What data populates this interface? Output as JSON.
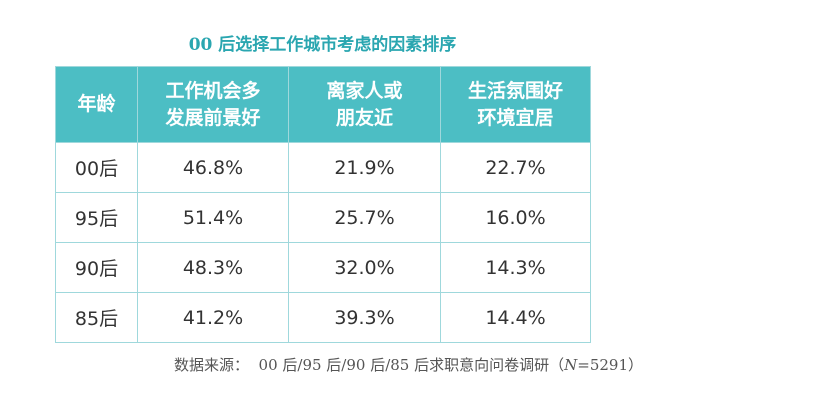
{
  "title": "00 后选择工作城市考虑的因素排序",
  "table": {
    "header": [
      [
        "年龄"
      ],
      [
        "工作机会多",
        "发展前景好"
      ],
      [
        "离家人或",
        "朋友近"
      ],
      [
        "生活氛围好",
        "环境宜居"
      ]
    ],
    "rows": [
      [
        "00后",
        "46.8%",
        "21.9%",
        "22.7%"
      ],
      [
        "95后",
        "51.4%",
        "25.7%",
        "16.0%"
      ],
      [
        "90后",
        "48.3%",
        "32.0%",
        "14.3%"
      ],
      [
        "85后",
        "41.2%",
        "39.3%",
        "14.4%"
      ]
    ]
  },
  "source": {
    "text": "数据来源：  00 后/95 后/90 后/85 后求职意向问卷调研（",
    "variable": "N",
    "suffix": "=5291）"
  }
}
